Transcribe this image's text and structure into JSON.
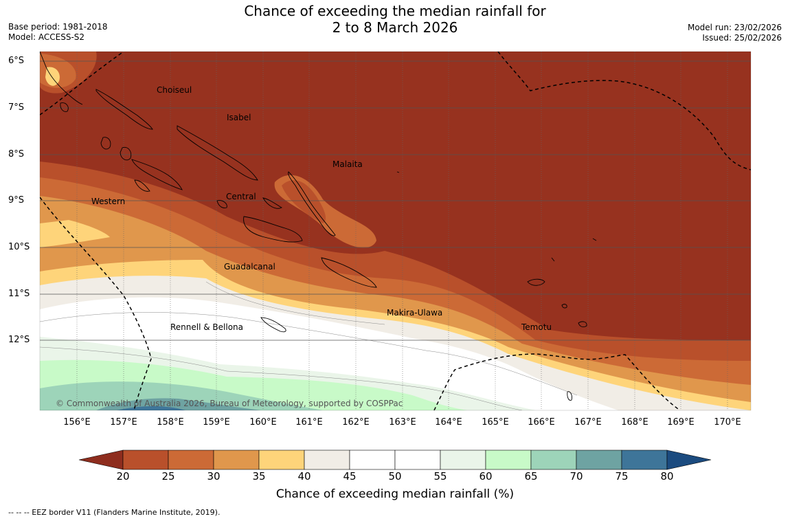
{
  "header": {
    "title_line1": "Chance of exceeding the median rainfall for",
    "title_line2": "2 to 8 March 2026",
    "base_period": "Base period: 1981-2018",
    "model": "Model: ACCESS-S2",
    "model_run": "Model run: 23/02/2026",
    "issued": "Issued: 25/02/2026"
  },
  "map": {
    "lat_ticks": [
      "6°S",
      "7°S",
      "8°S",
      "9°S",
      "10°S",
      "11°S",
      "12°S"
    ],
    "lon_ticks": [
      "156°E",
      "157°E",
      "158°E",
      "159°E",
      "160°E",
      "161°E",
      "162°E",
      "163°E",
      "164°E",
      "165°E",
      "166°E",
      "167°E",
      "168°E",
      "169°E",
      "170°E"
    ],
    "regions": {
      "choiseul": "Choiseul",
      "isabel": "Isabel",
      "malaita": "Malaita",
      "central": "Central",
      "western": "Western",
      "guadalcanal": "Guadalcanal",
      "makira": "Makira-Ulawa",
      "rennell": "Rennell & Bellona",
      "temotu": "Temotu"
    },
    "copyright": "© Commonwealth of Australia 2026, Bureau of Meteorology, supported by COSPPac",
    "colors": {
      "lt20": "#8e2d1e",
      "c20_25": "#97321f",
      "c25_30": "#b9502b",
      "c30_35": "#cc6a36",
      "c35_40": "#e0974c",
      "c40_45": "#fed47a",
      "c45_50": "#f1ede6",
      "c50_55": "#ffffff",
      "c55_60": "#eaf5e9",
      "c60_65": "#c8fac8",
      "c65_70": "#9dd4b9",
      "c70_75": "#6ea3a2",
      "c75_80": "#3e7599",
      "gt80": "#1b4b7f"
    }
  },
  "colorbar": {
    "ticks": [
      "20",
      "25",
      "30",
      "35",
      "40",
      "45",
      "50",
      "55",
      "60",
      "65",
      "70",
      "75",
      "80"
    ],
    "title": "Chance of exceeding median rainfall (%)"
  },
  "footnote": "-- -- -- EEZ border V11 (Flanders Marine Institute, 2019)."
}
